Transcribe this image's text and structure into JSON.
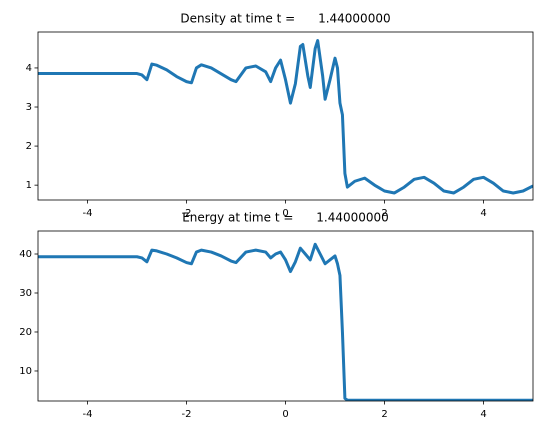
{
  "chart_data": [
    {
      "type": "line",
      "title": "Density at time t =      1.44000000",
      "x": [
        -5,
        -3.0,
        -2.9,
        -2.8,
        -2.7,
        -2.6,
        -2.4,
        -2.2,
        -2.0,
        -1.9,
        -1.8,
        -1.7,
        -1.5,
        -1.3,
        -1.1,
        -1.0,
        -0.8,
        -0.6,
        -0.4,
        -0.3,
        -0.2,
        -0.1,
        0.0,
        0.1,
        0.2,
        0.3,
        0.35,
        0.45,
        0.5,
        0.6,
        0.65,
        0.75,
        0.8,
        0.9,
        1.0,
        1.05,
        1.1,
        1.15,
        1.2,
        1.25,
        1.4,
        1.6,
        1.8,
        2.0,
        2.2,
        2.4,
        2.6,
        2.8,
        3.0,
        3.2,
        3.4,
        3.6,
        3.8,
        4.0,
        4.2,
        4.4,
        4.6,
        4.8,
        5.0
      ],
      "series": [
        {
          "color": "#1f77b4",
          "values": [
            3.857,
            3.857,
            3.82,
            3.7,
            4.1,
            4.07,
            3.95,
            3.78,
            3.65,
            3.62,
            4.0,
            4.08,
            4.0,
            3.85,
            3.7,
            3.65,
            4.0,
            4.05,
            3.9,
            3.65,
            4.0,
            4.2,
            3.7,
            3.1,
            3.6,
            4.55,
            4.6,
            3.8,
            3.5,
            4.5,
            4.7,
            3.8,
            3.2,
            3.7,
            4.25,
            4.0,
            3.1,
            2.8,
            1.3,
            0.95,
            1.1,
            1.18,
            1.0,
            0.85,
            0.8,
            0.95,
            1.15,
            1.2,
            1.05,
            0.85,
            0.8,
            0.95,
            1.15,
            1.2,
            1.05,
            0.85,
            0.8,
            0.85,
            0.98
          ]
        }
      ],
      "xlim": [
        -5,
        5
      ],
      "xticks": [
        -4,
        -2,
        0,
        2,
        4
      ],
      "ylim": [
        0.62,
        4.92
      ],
      "yticks": [
        1,
        2,
        3,
        4
      ]
    },
    {
      "type": "line",
      "title": "Energy at time t =      1.44000000",
      "x": [
        -5,
        -3.0,
        -2.9,
        -2.8,
        -2.7,
        -2.6,
        -2.4,
        -2.2,
        -2.0,
        -1.9,
        -1.8,
        -1.7,
        -1.5,
        -1.3,
        -1.1,
        -1.0,
        -0.8,
        -0.6,
        -0.4,
        -0.3,
        -0.2,
        -0.1,
        0.0,
        0.1,
        0.2,
        0.3,
        0.4,
        0.5,
        0.6,
        0.7,
        0.8,
        0.9,
        1.0,
        1.05,
        1.1,
        1.15,
        1.2,
        1.25,
        5.0
      ],
      "series": [
        {
          "color": "#1f77b4",
          "values": [
            39.3,
            39.3,
            39.0,
            38.0,
            41.0,
            40.8,
            40.0,
            39.0,
            37.8,
            37.5,
            40.5,
            41.0,
            40.5,
            39.5,
            38.2,
            37.8,
            40.5,
            41.0,
            40.5,
            39.0,
            40.0,
            40.5,
            38.5,
            35.5,
            38.0,
            41.5,
            40.0,
            38.5,
            42.5,
            40.0,
            37.5,
            38.5,
            39.5,
            37.5,
            34.5,
            20,
            3.0,
            2.5,
            2.5
          ]
        }
      ],
      "xlim": [
        -5,
        5
      ],
      "xticks": [
        -4,
        -2,
        0,
        2,
        4
      ],
      "ylim": [
        2.3,
        45.9
      ],
      "yticks": [
        10,
        20,
        30,
        40
      ]
    }
  ]
}
